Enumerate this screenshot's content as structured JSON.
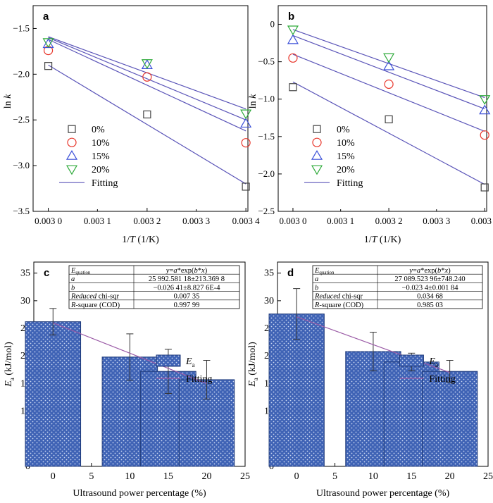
{
  "chart_data": [
    {
      "id": "a",
      "type": "scatter",
      "panel_label": "a",
      "xlabel": "1/T (1/K)",
      "ylabel": "ln k",
      "ylim": [
        -3.5,
        -1.25
      ],
      "xlim": [
        0.002995,
        0.003419
      ],
      "x_ticks": [
        0.003025,
        0.00322,
        0.003415
      ],
      "x_tick_labels": [
        "0.003 0",
        "0.003 2",
        "0.003 4"
      ],
      "x_minor_labels_at": [
        0.003122,
        0.003317
      ],
      "x_minor_label_texts": [
        "0.003 1",
        "0.003 3"
      ],
      "y_ticks": [
        -3.5,
        -3.0,
        -2.5,
        -2.0,
        -1.5
      ],
      "y_tick_labels": [
        "−3.5",
        "−3.0",
        "−2.5",
        "−2.0",
        "−1.5"
      ],
      "x": [
        0.003025,
        0.00322,
        0.003415
      ],
      "series": [
        {
          "name": "0%",
          "marker": "square",
          "color": "#444444",
          "values": [
            -1.91,
            -2.44,
            -3.23
          ],
          "fit": [
            -1.9,
            -3.2
          ]
        },
        {
          "name": "10%",
          "marker": "circle",
          "color": "#e8352a",
          "values": [
            -1.74,
            -2.03,
            -2.75
          ],
          "fit": [
            -1.62,
            -2.62
          ]
        },
        {
          "name": "15%",
          "marker": "triangle-up",
          "color": "#3a4fd8",
          "values": [
            -1.67,
            -1.9,
            -2.54
          ],
          "fit": [
            -1.6,
            -2.5
          ]
        },
        {
          "name": "20%",
          "marker": "triangle-down",
          "color": "#2eaa3a",
          "values": [
            -1.65,
            -1.88,
            -2.43
          ],
          "fit": [
            -1.59,
            -2.38
          ]
        }
      ],
      "legend_fit_label": "Fitting",
      "fit_color": "#5a54b8"
    },
    {
      "id": "b",
      "type": "scatter",
      "panel_label": "b",
      "xlabel": "1/T (1/K)",
      "ylabel": "ln k",
      "ylim": [
        -2.5,
        0.25
      ],
      "xlim": [
        0.002995,
        0.003419
      ],
      "x_ticks": [
        0.003025,
        0.00322,
        0.003415
      ],
      "x_tick_labels": [
        "0.003 0",
        "0.003 2",
        "0.003 4"
      ],
      "x_minor_labels_at": [
        0.003122,
        0.003317
      ],
      "x_minor_label_texts": [
        "0.003 1",
        "0.003 3"
      ],
      "y_ticks": [
        -2.5,
        -2.0,
        -1.5,
        -1.0,
        -0.5,
        0
      ],
      "y_tick_labels": [
        "−2.5",
        "−2.0",
        "−1.5",
        "−1.0",
        "−0.5",
        "0"
      ],
      "x": [
        0.003025,
        0.00322,
        0.003415
      ],
      "series": [
        {
          "name": "0%",
          "marker": "square",
          "color": "#444444",
          "values": [
            -0.84,
            -1.27,
            -2.18
          ],
          "fit": [
            -0.77,
            -2.14
          ]
        },
        {
          "name": "10%",
          "marker": "circle",
          "color": "#e8352a",
          "values": [
            -0.45,
            -0.8,
            -1.48
          ],
          "fit": [
            -0.4,
            -1.43
          ]
        },
        {
          "name": "15%",
          "marker": "triangle-up",
          "color": "#3a4fd8",
          "values": [
            -0.21,
            -0.56,
            -1.15
          ],
          "fit": [
            -0.15,
            -1.13
          ]
        },
        {
          "name": "20%",
          "marker": "triangle-down",
          "color": "#2eaa3a",
          "values": [
            -0.07,
            -0.44,
            -1.0
          ],
          "fit": [
            -0.07,
            -0.98
          ]
        }
      ],
      "legend_fit_label": "Fitting",
      "fit_color": "#5a54b8"
    },
    {
      "id": "c",
      "type": "bar",
      "panel_label": "c",
      "xlabel": "Ultrasound power percentage (%)",
      "ylabel": "Ea (kJ/mol)",
      "xlim": [
        -2.5,
        25
      ],
      "ylim": [
        0,
        37
      ],
      "x_ticks": [
        0,
        5,
        10,
        15,
        20,
        25
      ],
      "y_ticks": [
        0,
        5,
        10,
        15,
        20,
        25,
        30,
        35
      ],
      "x": [
        0,
        10,
        15,
        20
      ],
      "values": [
        26.2,
        19.8,
        17.2,
        15.7
      ],
      "errors": [
        2.4,
        4.2,
        4.0,
        3.5
      ],
      "fit_y": [
        25.99,
        15.0
      ],
      "bar_color": "#3f63b5",
      "legend_bar_label": "Ea",
      "legend_fit_label": "Fitting",
      "fit_color": "#9a5aa6",
      "table": {
        "rows": [
          [
            "Equation",
            "y=a*exp(b*x)"
          ],
          [
            "a",
            "25 992.581 18±213.369 8"
          ],
          [
            "b",
            "−0.026 41±8.827 6E-4"
          ],
          [
            "Reduced chi-sqr",
            "0.007 35"
          ],
          [
            "R-square (COD)",
            "0.997 99"
          ]
        ]
      }
    },
    {
      "id": "d",
      "type": "bar",
      "panel_label": "d",
      "xlabel": "Ultrasound power percentage (%)",
      "ylabel": "Ea (kJ/mol)",
      "xlim": [
        -2.5,
        25
      ],
      "ylim": [
        0,
        37
      ],
      "x_ticks": [
        0,
        5,
        10,
        15,
        20,
        25
      ],
      "y_ticks": [
        0,
        5,
        10,
        15,
        20,
        25,
        30,
        35
      ],
      "x": [
        0,
        10,
        15,
        20
      ],
      "values": [
        27.6,
        20.8,
        18.9,
        17.2
      ],
      "errors": [
        4.6,
        3.5,
        1.6,
        2.0
      ],
      "fit_y": [
        27.09,
        17.0
      ],
      "bar_color": "#3f63b5",
      "legend_bar_label": "Ea",
      "legend_fit_label": "Fitting",
      "fit_color": "#9a5aa6",
      "table": {
        "rows": [
          [
            "Equation",
            "y=a*exp(b*x)"
          ],
          [
            "a",
            "27 089.523 96±748.240"
          ],
          [
            "b",
            "−0.023 4±0.001 84"
          ],
          [
            "Reduced chi-sqr",
            "0.034 68"
          ],
          [
            "R-square (COD)",
            "0.985 03"
          ]
        ]
      }
    }
  ]
}
